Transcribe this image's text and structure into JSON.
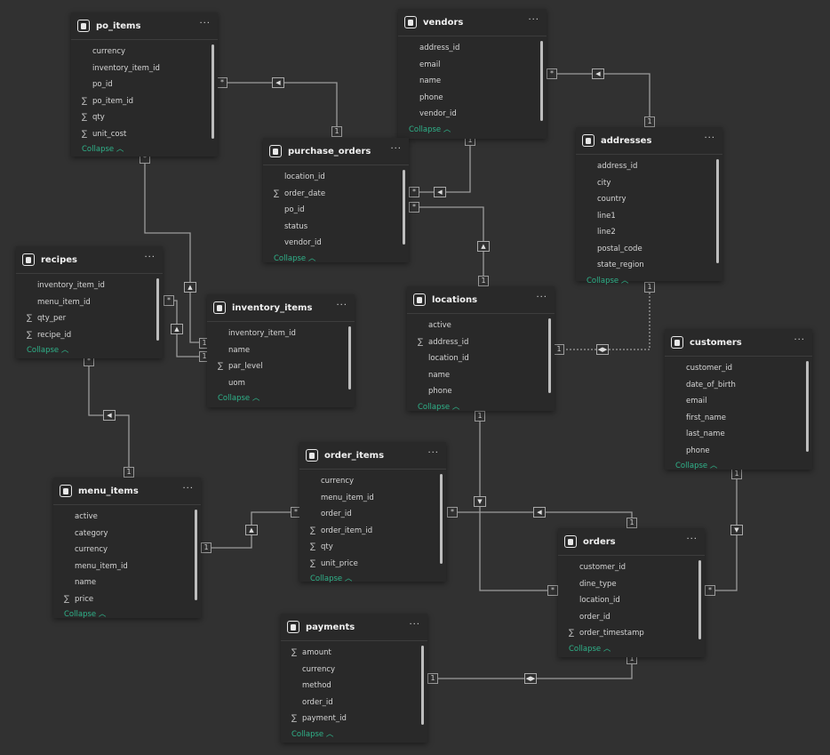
{
  "tables": [
    {
      "id": "po_items",
      "name": "po_items",
      "columns": [
        {
          "name": "currency",
          "sum": false
        },
        {
          "name": "inventory_item_id",
          "sum": false
        },
        {
          "name": "po_id",
          "sum": false
        },
        {
          "name": "po_item_id",
          "sum": true
        },
        {
          "name": "qty",
          "sum": true
        },
        {
          "name": "unit_cost",
          "sum": true
        }
      ],
      "collapse": "Collapse"
    },
    {
      "id": "vendors",
      "name": "vendors",
      "columns": [
        {
          "name": "address_id",
          "sum": false
        },
        {
          "name": "email",
          "sum": false
        },
        {
          "name": "name",
          "sum": false
        },
        {
          "name": "phone",
          "sum": false
        },
        {
          "name": "vendor_id",
          "sum": false
        }
      ],
      "collapse": "Collapse"
    },
    {
      "id": "purchase_orders",
      "name": "purchase_orders",
      "columns": [
        {
          "name": "location_id",
          "sum": false
        },
        {
          "name": "order_date",
          "sum": true
        },
        {
          "name": "po_id",
          "sum": false
        },
        {
          "name": "status",
          "sum": false
        },
        {
          "name": "vendor_id",
          "sum": false
        }
      ],
      "collapse": "Collapse"
    },
    {
      "id": "addresses",
      "name": "addresses",
      "columns": [
        {
          "name": "address_id",
          "sum": false
        },
        {
          "name": "city",
          "sum": false
        },
        {
          "name": "country",
          "sum": false
        },
        {
          "name": "line1",
          "sum": false
        },
        {
          "name": "line2",
          "sum": false
        },
        {
          "name": "postal_code",
          "sum": false
        },
        {
          "name": "state_region",
          "sum": false
        }
      ],
      "collapse": "Collapse"
    },
    {
      "id": "recipes",
      "name": "recipes",
      "columns": [
        {
          "name": "inventory_item_id",
          "sum": false
        },
        {
          "name": "menu_item_id",
          "sum": false
        },
        {
          "name": "qty_per",
          "sum": true
        },
        {
          "name": "recipe_id",
          "sum": true
        }
      ],
      "collapse": "Collapse"
    },
    {
      "id": "inventory_items",
      "name": "inventory_items",
      "columns": [
        {
          "name": "inventory_item_id",
          "sum": false
        },
        {
          "name": "name",
          "sum": false
        },
        {
          "name": "par_level",
          "sum": true
        },
        {
          "name": "uom",
          "sum": false
        }
      ],
      "collapse": "Collapse"
    },
    {
      "id": "locations",
      "name": "locations",
      "columns": [
        {
          "name": "active",
          "sum": false
        },
        {
          "name": "address_id",
          "sum": true
        },
        {
          "name": "location_id",
          "sum": false
        },
        {
          "name": "name",
          "sum": false
        },
        {
          "name": "phone",
          "sum": false
        }
      ],
      "collapse": "Collapse"
    },
    {
      "id": "customers",
      "name": "customers",
      "columns": [
        {
          "name": "customer_id",
          "sum": false
        },
        {
          "name": "date_of_birth",
          "sum": false
        },
        {
          "name": "email",
          "sum": false
        },
        {
          "name": "first_name",
          "sum": false
        },
        {
          "name": "last_name",
          "sum": false
        },
        {
          "name": "phone",
          "sum": false
        }
      ],
      "collapse": "Collapse"
    },
    {
      "id": "order_items",
      "name": "order_items",
      "columns": [
        {
          "name": "currency",
          "sum": false
        },
        {
          "name": "menu_item_id",
          "sum": false
        },
        {
          "name": "order_id",
          "sum": false
        },
        {
          "name": "order_item_id",
          "sum": true
        },
        {
          "name": "qty",
          "sum": true
        },
        {
          "name": "unit_price",
          "sum": true
        }
      ],
      "collapse": "Collapse"
    },
    {
      "id": "menu_items",
      "name": "menu_items",
      "columns": [
        {
          "name": "active",
          "sum": false
        },
        {
          "name": "category",
          "sum": false
        },
        {
          "name": "currency",
          "sum": false
        },
        {
          "name": "menu_item_id",
          "sum": false
        },
        {
          "name": "name",
          "sum": false
        },
        {
          "name": "price",
          "sum": true
        }
      ],
      "collapse": "Collapse"
    },
    {
      "id": "orders",
      "name": "orders",
      "columns": [
        {
          "name": "customer_id",
          "sum": false
        },
        {
          "name": "dine_type",
          "sum": false
        },
        {
          "name": "location_id",
          "sum": false
        },
        {
          "name": "order_id",
          "sum": false
        },
        {
          "name": "order_timestamp",
          "sum": true
        }
      ],
      "collapse": "Collapse"
    },
    {
      "id": "payments",
      "name": "payments",
      "columns": [
        {
          "name": "amount",
          "sum": true
        },
        {
          "name": "currency",
          "sum": false
        },
        {
          "name": "method",
          "sum": false
        },
        {
          "name": "order_id",
          "sum": false
        },
        {
          "name": "payment_id",
          "sum": true
        }
      ],
      "collapse": "Collapse"
    }
  ],
  "more_label": "···",
  "relationships": [
    {
      "from": "po_items",
      "to": "purchase_orders",
      "from_card": "*",
      "to_card": "1",
      "filter": "single"
    },
    {
      "from": "vendors",
      "to": "addresses",
      "from_card": "*",
      "to_card": "1",
      "filter": "single"
    },
    {
      "from": "purchase_orders",
      "to": "vendors",
      "from_card": "*",
      "to_card": "1",
      "filter": "single"
    },
    {
      "from": "purchase_orders",
      "to": "locations",
      "from_card": "*",
      "to_card": "1",
      "filter": "single"
    },
    {
      "from": "po_items",
      "to": "inventory_items",
      "from_card": "*",
      "to_card": "1",
      "filter": "single"
    },
    {
      "from": "recipes",
      "to": "inventory_items",
      "from_card": "*",
      "to_card": "1",
      "filter": "single"
    },
    {
      "from": "recipes",
      "to": "menu_items",
      "from_card": "*",
      "to_card": "1",
      "filter": "single"
    },
    {
      "from": "locations",
      "to": "addresses",
      "from_card": "1",
      "to_card": "1",
      "filter": "both",
      "inactive": true
    },
    {
      "from": "orders",
      "to": "locations",
      "from_card": "*",
      "to_card": "1",
      "filter": "single"
    },
    {
      "from": "order_items",
      "to": "orders",
      "from_card": "*",
      "to_card": "1",
      "filter": "single"
    },
    {
      "from": "order_items",
      "to": "menu_items",
      "from_card": "*",
      "to_card": "1",
      "filter": "single"
    },
    {
      "from": "orders",
      "to": "customers",
      "from_card": "*",
      "to_card": "1",
      "filter": "single"
    },
    {
      "from": "payments",
      "to": "orders",
      "from_card": "1",
      "to_card": "1",
      "filter": "both"
    }
  ]
}
